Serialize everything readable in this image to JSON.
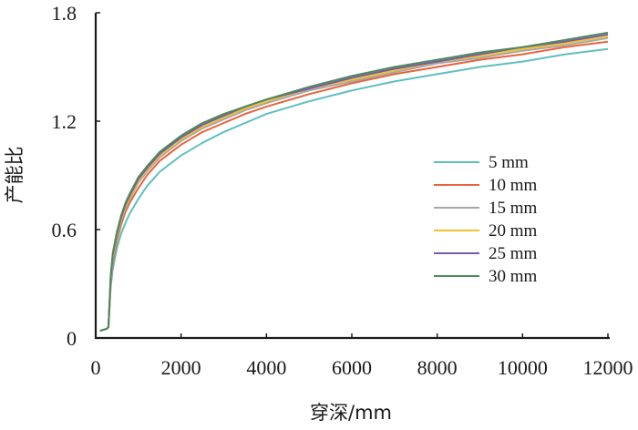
{
  "chart_data": {
    "type": "line",
    "xlabel": "穿深/mm",
    "ylabel": "产能比",
    "xlim": [
      0,
      12000
    ],
    "ylim": [
      0,
      1.8
    ],
    "x_ticks": [
      "0",
      "2000",
      "4000",
      "6000",
      "8000",
      "10000",
      "12000"
    ],
    "y_ticks": [
      "0",
      "0.6",
      "1.2",
      "1.8"
    ],
    "grid": false,
    "legend_position": "right",
    "x": [
      100,
      250,
      300,
      350,
      400,
      500,
      600,
      700,
      800,
      1000,
      1200,
      1500,
      2000,
      2500,
      3000,
      3500,
      4000,
      5000,
      6000,
      7000,
      8000,
      9000,
      10000,
      11000,
      12000
    ],
    "series": [
      {
        "name": "5 mm",
        "color": "#5fbfbf",
        "values": [
          0.04,
          0.05,
          0.06,
          0.28,
          0.38,
          0.5,
          0.58,
          0.64,
          0.69,
          0.77,
          0.84,
          0.92,
          1.01,
          1.08,
          1.14,
          1.19,
          1.24,
          1.31,
          1.37,
          1.42,
          1.46,
          1.5,
          1.53,
          1.57,
          1.6
        ]
      },
      {
        "name": "10 mm",
        "color": "#e8643c",
        "values": [
          0.04,
          0.05,
          0.06,
          0.3,
          0.42,
          0.54,
          0.63,
          0.7,
          0.75,
          0.83,
          0.9,
          0.98,
          1.07,
          1.14,
          1.19,
          1.24,
          1.28,
          1.35,
          1.41,
          1.46,
          1.5,
          1.54,
          1.57,
          1.61,
          1.64
        ]
      },
      {
        "name": "15 mm",
        "color": "#a6a6a6",
        "values": [
          0.04,
          0.05,
          0.06,
          0.31,
          0.44,
          0.56,
          0.65,
          0.72,
          0.77,
          0.86,
          0.92,
          1.0,
          1.09,
          1.16,
          1.21,
          1.26,
          1.3,
          1.37,
          1.42,
          1.47,
          1.52,
          1.55,
          1.59,
          1.62,
          1.66
        ]
      },
      {
        "name": "20 mm",
        "color": "#f2c12e",
        "values": [
          0.04,
          0.05,
          0.06,
          0.32,
          0.45,
          0.57,
          0.66,
          0.73,
          0.78,
          0.87,
          0.93,
          1.01,
          1.1,
          1.17,
          1.22,
          1.27,
          1.31,
          1.38,
          1.43,
          1.48,
          1.53,
          1.56,
          1.6,
          1.63,
          1.67
        ]
      },
      {
        "name": "25 mm",
        "color": "#7a5aa6",
        "values": [
          0.04,
          0.05,
          0.06,
          0.33,
          0.46,
          0.58,
          0.67,
          0.74,
          0.79,
          0.88,
          0.94,
          1.02,
          1.11,
          1.18,
          1.23,
          1.28,
          1.32,
          1.38,
          1.44,
          1.49,
          1.53,
          1.57,
          1.61,
          1.64,
          1.68
        ]
      },
      {
        "name": "30 mm",
        "color": "#4f8a5e",
        "values": [
          0.04,
          0.05,
          0.06,
          0.34,
          0.47,
          0.59,
          0.68,
          0.75,
          0.8,
          0.89,
          0.95,
          1.03,
          1.12,
          1.19,
          1.24,
          1.28,
          1.32,
          1.39,
          1.45,
          1.5,
          1.54,
          1.58,
          1.61,
          1.65,
          1.69
        ]
      }
    ]
  }
}
